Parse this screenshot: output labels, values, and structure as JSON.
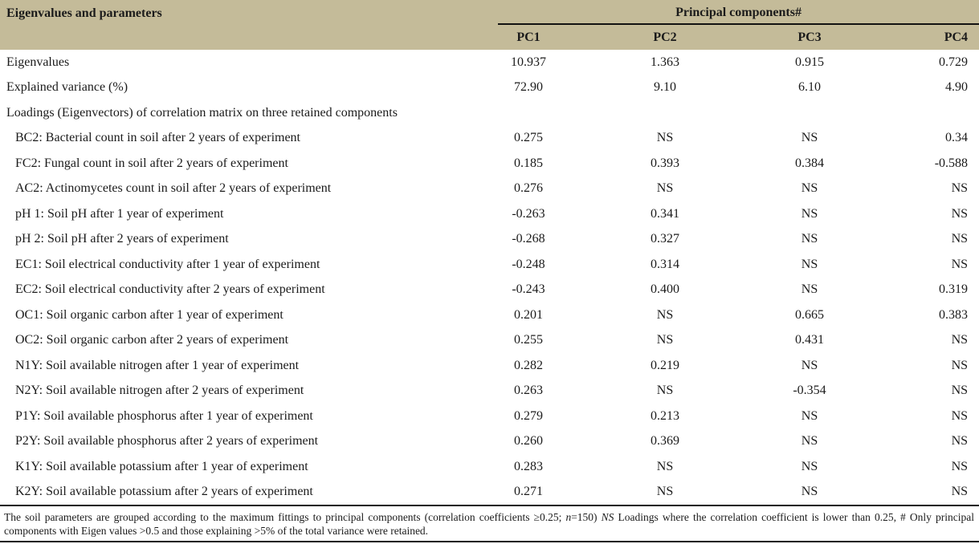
{
  "table": {
    "title": "Eigenvalues and parameters",
    "group_header": "Principal components#",
    "columns": [
      "PC1",
      "PC2",
      "PC3",
      "PC4"
    ],
    "rows": [
      {
        "label": "Eigenvalues",
        "indent": false,
        "values": [
          "10.937",
          "1.363",
          "0.915",
          "0.729"
        ]
      },
      {
        "label": "Explained variance (%)",
        "indent": false,
        "values": [
          "72.90",
          "9.10",
          "6.10",
          "4.90"
        ]
      },
      {
        "label": "Loadings (Eigenvectors) of correlation matrix on three retained components",
        "indent": false,
        "values": [
          "",
          "",
          "",
          ""
        ]
      },
      {
        "label": "BC2: Bacterial count in soil after 2 years of experiment",
        "indent": true,
        "values": [
          "0.275",
          "NS",
          "NS",
          "0.34"
        ]
      },
      {
        "label": "FC2: Fungal count in soil after 2 years of experiment",
        "indent": true,
        "values": [
          "0.185",
          "0.393",
          "0.384",
          "-0.588"
        ]
      },
      {
        "label": "AC2: Actinomycetes count in soil after 2 years of experiment",
        "indent": true,
        "values": [
          "0.276",
          "NS",
          "NS",
          "NS"
        ]
      },
      {
        "label": "pH 1: Soil pH after 1 year of experiment",
        "indent": true,
        "values": [
          "-0.263",
          "0.341",
          "NS",
          "NS"
        ]
      },
      {
        "label": "pH 2: Soil pH after 2 years of experiment",
        "indent": true,
        "values": [
          "-0.268",
          "0.327",
          "NS",
          "NS"
        ]
      },
      {
        "label": "EC1: Soil electrical conductivity after 1 year of experiment",
        "indent": true,
        "values": [
          "-0.248",
          "0.314",
          "NS",
          "NS"
        ]
      },
      {
        "label": "EC2: Soil electrical conductivity after 2 years of experiment",
        "indent": true,
        "values": [
          "-0.243",
          "0.400",
          "NS",
          "0.319"
        ]
      },
      {
        "label": "OC1: Soil organic carbon after 1 year of experiment",
        "indent": true,
        "values": [
          "0.201",
          "NS",
          "0.665",
          "0.383"
        ]
      },
      {
        "label": "OC2: Soil organic carbon after 2 years of experiment",
        "indent": true,
        "values": [
          "0.255",
          "NS",
          "0.431",
          "NS"
        ]
      },
      {
        "label": "N1Y: Soil available nitrogen after 1 year of experiment",
        "indent": true,
        "values": [
          "0.282",
          "0.219",
          "NS",
          "NS"
        ]
      },
      {
        "label": "N2Y: Soil available nitrogen after 2 years of experiment",
        "indent": true,
        "values": [
          "0.263",
          "NS",
          "-0.354",
          "NS"
        ]
      },
      {
        "label": "P1Y: Soil available phosphorus after 1 year of experiment",
        "indent": true,
        "values": [
          "0.279",
          "0.213",
          "NS",
          "NS"
        ]
      },
      {
        "label": "P2Y: Soil available phosphorus after 2 years of experiment",
        "indent": true,
        "values": [
          "0.260",
          "0.369",
          "NS",
          "NS"
        ]
      },
      {
        "label": "K1Y: Soil available potassium after 1 year of experiment",
        "indent": true,
        "values": [
          "0.283",
          "NS",
          "NS",
          "NS"
        ]
      },
      {
        "label": "K2Y: Soil available potassium after 2 years of experiment",
        "indent": true,
        "values": [
          "0.271",
          "NS",
          "NS",
          "NS"
        ]
      }
    ]
  },
  "footnote": {
    "parts": [
      "The soil parameters are grouped according to the maximum fittings to principal components (correlation coefficients ≥0.25; ",
      "n",
      "=150) ",
      "NS",
      " Loadings where the correlation coefficient is lower than 0.25, # Only principal components with Eigen values >0.5 and those explaining >5% of the total variance were retained."
    ]
  },
  "colors": {
    "header_bg": "#c4bb99",
    "text": "#1b1b1b",
    "rule": "#121212"
  }
}
